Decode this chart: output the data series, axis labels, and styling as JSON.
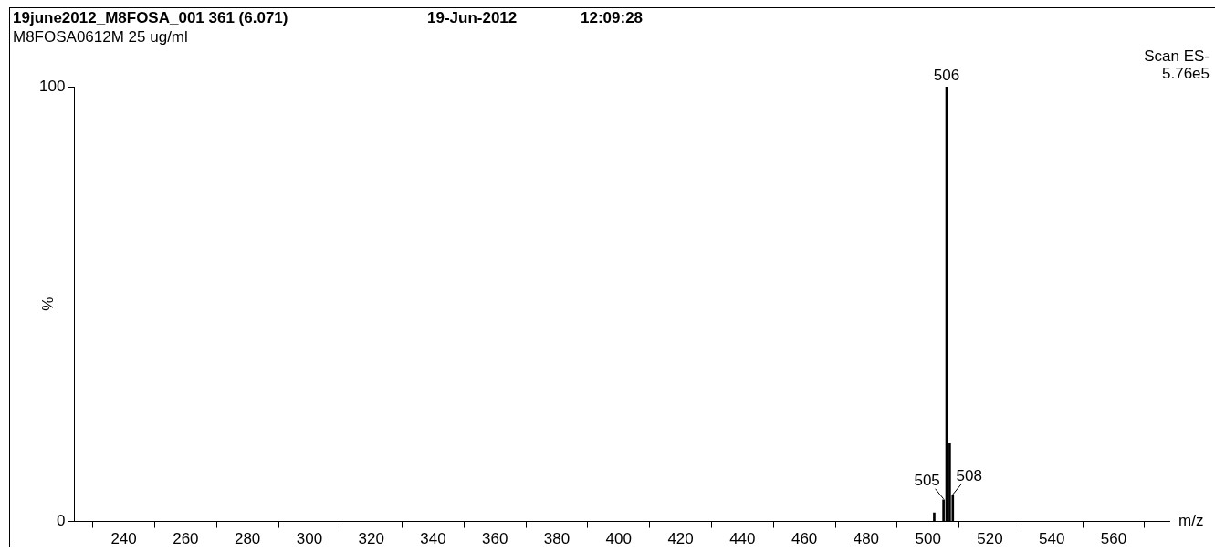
{
  "chart_data": {
    "type": "bar",
    "title": "19june2012_M8FOSA_001  361 (6.071)",
    "subtitle": "M8FOSA0612M 25 ug/ml",
    "xlabel": "m/z",
    "ylabel": "%",
    "x": [
      502,
      505,
      506,
      507,
      508
    ],
    "series": [
      {
        "color": "#000000",
        "values": [
          2,
          5,
          100,
          18,
          6
        ]
      }
    ],
    "xlim": [
      224,
      578
    ],
    "xticks": [
      240,
      260,
      280,
      300,
      320,
      340,
      360,
      380,
      400,
      420,
      440,
      460,
      480,
      500,
      520,
      540,
      560
    ],
    "ylim": [
      0,
      100
    ],
    "yticks": [
      0,
      100
    ],
    "grid": false,
    "legend": false,
    "annotations": [
      "19-Jun-2012",
      "12:09:28",
      "Scan ES-",
      "5.76e5",
      {
        "text": "506",
        "x": 506,
        "y": 100
      },
      {
        "text": "505",
        "x": 505,
        "y": 5
      },
      {
        "text": "508",
        "x": 508,
        "y": 6
      }
    ]
  }
}
